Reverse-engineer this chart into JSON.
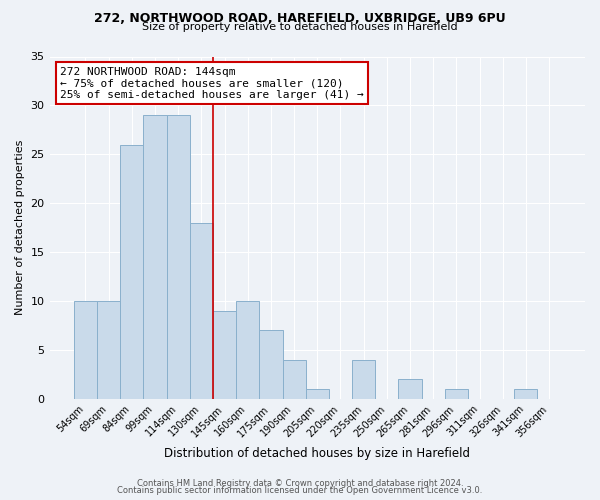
{
  "title1": "272, NORTHWOOD ROAD, HAREFIELD, UXBRIDGE, UB9 6PU",
  "title2": "Size of property relative to detached houses in Harefield",
  "xlabel": "Distribution of detached houses by size in Harefield",
  "ylabel": "Number of detached properties",
  "bin_labels": [
    "54sqm",
    "69sqm",
    "84sqm",
    "99sqm",
    "114sqm",
    "130sqm",
    "145sqm",
    "160sqm",
    "175sqm",
    "190sqm",
    "205sqm",
    "220sqm",
    "235sqm",
    "250sqm",
    "265sqm",
    "281sqm",
    "296sqm",
    "311sqm",
    "326sqm",
    "341sqm",
    "356sqm"
  ],
  "bar_heights": [
    10,
    10,
    26,
    29,
    29,
    18,
    9,
    10,
    7,
    4,
    1,
    0,
    4,
    0,
    2,
    0,
    1,
    0,
    0,
    1,
    0
  ],
  "bar_color": "#c9daea",
  "bar_edge_color": "#8ab0cc",
  "highlight_line_idx": 6,
  "highlight_line_color": "#cc0000",
  "annotation_text": "272 NORTHWOOD ROAD: 144sqm\n← 75% of detached houses are smaller (120)\n25% of semi-detached houses are larger (41) →",
  "annotation_box_color": "#ffffff",
  "annotation_box_edge": "#cc0000",
  "ylim": [
    0,
    35
  ],
  "yticks": [
    0,
    5,
    10,
    15,
    20,
    25,
    30,
    35
  ],
  "footer1": "Contains HM Land Registry data © Crown copyright and database right 2024.",
  "footer2": "Contains public sector information licensed under the Open Government Licence v3.0.",
  "bg_color": "#eef2f7",
  "plot_bg_color": "#eef2f7",
  "grid_color": "#ffffff"
}
